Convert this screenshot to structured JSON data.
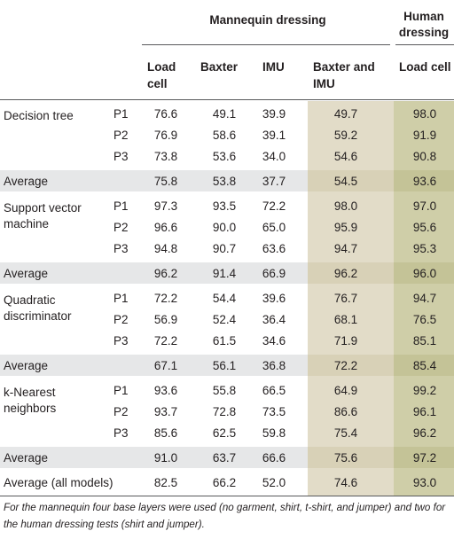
{
  "header": {
    "group_mannequin": "Mannequin dressing",
    "group_human_line1": "Human",
    "group_human_line2": "dressing",
    "columns": [
      {
        "line1": "Load",
        "line2": "cell"
      },
      {
        "line1": "Baxter",
        "line2": ""
      },
      {
        "line1": "IMU",
        "line2": ""
      },
      {
        "line1": "Baxter and",
        "line2": "IMU"
      },
      {
        "line1": "Load cell",
        "line2": ""
      }
    ]
  },
  "sections": [
    {
      "model_line1": "Decision tree",
      "model_line2": "",
      "rows": [
        {
          "p": "P1",
          "values": [
            "76.6",
            "49.1",
            "39.9",
            "49.7",
            "98.0"
          ]
        },
        {
          "p": "P2",
          "values": [
            "76.9",
            "58.6",
            "39.1",
            "59.2",
            "91.9"
          ]
        },
        {
          "p": "P3",
          "values": [
            "73.8",
            "53.6",
            "34.0",
            "54.6",
            "90.8"
          ]
        }
      ],
      "average": {
        "label": "Average",
        "values": [
          "75.8",
          "53.8",
          "37.7",
          "54.5",
          "93.6"
        ]
      }
    },
    {
      "model_line1": "Support vector",
      "model_line2": "machine",
      "rows": [
        {
          "p": "P1",
          "values": [
            "97.3",
            "93.5",
            "72.2",
            "98.0",
            "97.0"
          ]
        },
        {
          "p": "P2",
          "values": [
            "96.6",
            "90.0",
            "65.0",
            "95.9",
            "95.6"
          ]
        },
        {
          "p": "P3",
          "values": [
            "94.8",
            "90.7",
            "63.6",
            "94.7",
            "95.3"
          ]
        }
      ],
      "average": {
        "label": "Average",
        "values": [
          "96.2",
          "91.4",
          "66.9",
          "96.2",
          "96.0"
        ]
      }
    },
    {
      "model_line1": "Quadratic",
      "model_line2": "discriminator",
      "rows": [
        {
          "p": "P1",
          "values": [
            "72.2",
            "54.4",
            "39.6",
            "76.7",
            "94.7"
          ]
        },
        {
          "p": "P2",
          "values": [
            "56.9",
            "52.4",
            "36.4",
            "68.1",
            "76.5"
          ]
        },
        {
          "p": "P3",
          "values": [
            "72.2",
            "61.5",
            "34.6",
            "71.9",
            "85.1"
          ]
        }
      ],
      "average": {
        "label": "Average",
        "values": [
          "67.1",
          "56.1",
          "36.8",
          "72.2",
          "85.4"
        ]
      }
    },
    {
      "model_line1": "k-Nearest",
      "model_line2": "neighbors",
      "rows": [
        {
          "p": "P1",
          "values": [
            "93.6",
            "55.8",
            "66.5",
            "64.9",
            "99.2"
          ]
        },
        {
          "p": "P2",
          "values": [
            "93.7",
            "72.8",
            "73.5",
            "86.6",
            "96.1"
          ]
        },
        {
          "p": "P3",
          "values": [
            "85.6",
            "62.5",
            "59.8",
            "75.4",
            "96.2"
          ]
        }
      ],
      "average": {
        "label": "Average",
        "values": [
          "91.0",
          "63.7",
          "66.6",
          "75.6",
          "97.2"
        ]
      }
    }
  ],
  "overall": {
    "label": "Average (all models)",
    "values": [
      "82.5",
      "66.2",
      "52.0",
      "74.6",
      "93.0"
    ]
  },
  "footnote": "For the mannequin four base layers were used (no garment, shirt, t-shirt, and jumper) and two for the human dressing tests (shirt and jumper).",
  "colors": {
    "average_row": "#e6e7e8",
    "baxter_imu_column": "#e2dcc8",
    "human_column": "#cfcea8",
    "rule": "#58595b"
  }
}
